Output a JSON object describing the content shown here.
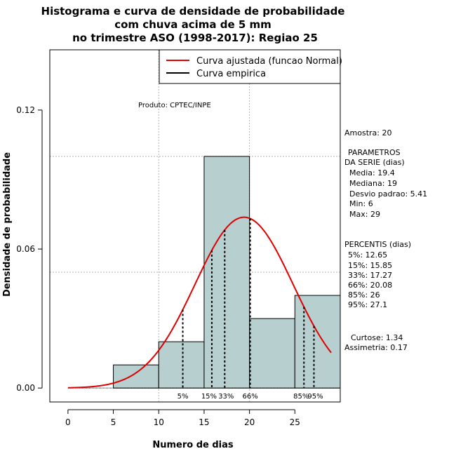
{
  "chart_data": {
    "type": "bar",
    "title_lines": [
      "Histograma e curva de densidade de probabilidade",
      "com chuva acima de 5 mm",
      "no trimestre ASO (1998-2017): Regiao 25"
    ],
    "xlabel": "Numero de dias",
    "ylabel": "Densidade de probabilidade",
    "xlim": [
      -2,
      30
    ],
    "ylim": [
      -0.006,
      0.146
    ],
    "xticks": [
      0,
      5,
      10,
      15,
      20,
      25
    ],
    "yticks": [
      0.0,
      0.06,
      0.12
    ],
    "ytick_labels": [
      "0.00",
      "0.06",
      "0.12"
    ],
    "grid_x": [
      10,
      20
    ],
    "grid_y": [
      0.05,
      0.1
    ],
    "bins": [
      {
        "start": 5,
        "end": 10,
        "density": 0.01
      },
      {
        "start": 10,
        "end": 15,
        "density": 0.02
      },
      {
        "start": 15,
        "end": 20,
        "density": 0.1
      },
      {
        "start": 20,
        "end": 25,
        "density": 0.03
      },
      {
        "start": 25,
        "end": 30,
        "density": 0.04
      }
    ],
    "bar_color": "#b7cfcf",
    "normal_curve": {
      "mean": 19.4,
      "sd": 5.41,
      "x_start": 0,
      "x_end": 29,
      "color": "#e00000"
    },
    "percentile_lines": [
      {
        "label": "5%",
        "value": 12.65
      },
      {
        "label": "15%",
        "value": 15.85
      },
      {
        "label": "33%",
        "value": 17.27
      },
      {
        "label": "66%",
        "value": 20.08
      },
      {
        "label": "85%",
        "value": 26
      },
      {
        "label": "95%",
        "value": 27.1
      }
    ],
    "legend": {
      "placement": "top-right",
      "entries": [
        {
          "label": "Curva ajustada (funcao Normal)",
          "color": "#e00000"
        },
        {
          "label": "Curva empirica",
          "color": "#000000"
        }
      ]
    },
    "annotation": "Produto: CPTEC/INPE"
  },
  "stats_panel": {
    "amostra": "Amostra: 20",
    "param_header_1": "PARAMETROS",
    "param_header_2": "DA SERIE (dias)",
    "params": [
      "Media: 19.4",
      "Mediana: 19",
      "Desvio padrao: 5.41",
      "Min: 6",
      "Max: 29"
    ],
    "perc_header": "PERCENTIS (dias)",
    "percentis": [
      "5%: 12.65",
      "15%: 15.85",
      "33%: 17.27",
      "66%: 20.08",
      "85%: 26",
      "95%: 27.1"
    ],
    "curtose": "Curtose: 1.34",
    "assimetria": "Assimetria: 0.17"
  }
}
